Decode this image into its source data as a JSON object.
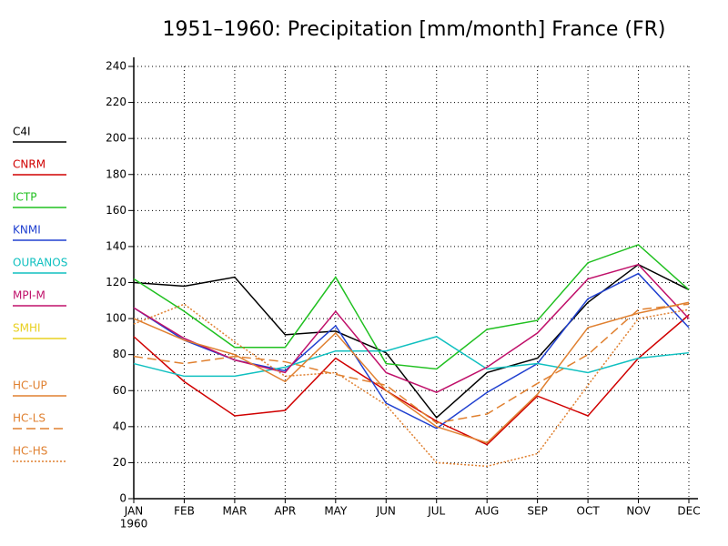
{
  "chart_data": {
    "type": "line",
    "title": "1951–1960: Precipitation [mm/month] France (FR)",
    "categories": [
      "JAN",
      "FEB",
      "MAR",
      "APR",
      "MAY",
      "JUN",
      "JUL",
      "AUG",
      "SEP",
      "OCT",
      "NOV",
      "DEC"
    ],
    "x_sublabel": "1960",
    "ylim": [
      0,
      240
    ],
    "yticks": [
      0,
      20,
      40,
      60,
      80,
      100,
      120,
      140,
      160,
      180,
      200,
      220,
      240
    ],
    "grid": true,
    "series": [
      {
        "name": "C4I",
        "color": "#000000",
        "dash": "none",
        "values": [
          120,
          118,
          123,
          91,
          93,
          81,
          45,
          70,
          78,
          109,
          130,
          116
        ]
      },
      {
        "name": "CNRM",
        "color": "#d00000",
        "dash": "none",
        "values": [
          90,
          65,
          46,
          49,
          78,
          60,
          43,
          30,
          57,
          46,
          78,
          102
        ]
      },
      {
        "name": "ICTP",
        "color": "#20c020",
        "dash": "none",
        "values": [
          122,
          104,
          84,
          84,
          123,
          75,
          72,
          94,
          99,
          131,
          141,
          116
        ]
      },
      {
        "name": "KNMI",
        "color": "#2040d0",
        "dash": "none",
        "values": [
          106,
          88,
          77,
          71,
          96,
          53,
          39,
          59,
          75,
          111,
          125,
          95
        ]
      },
      {
        "name": "OURANOS",
        "color": "#10c0c0",
        "dash": "none",
        "values": [
          75,
          68,
          68,
          73,
          82,
          82,
          90,
          72,
          75,
          70,
          78,
          81
        ]
      },
      {
        "name": "MPI-M",
        "color": "#c0106a",
        "dash": "none",
        "values": [
          106,
          89,
          77,
          70,
          104,
          70,
          59,
          73,
          92,
          122,
          130,
          100
        ]
      },
      {
        "name": "SMHI",
        "color": "#e8d020",
        "dash": "none",
        "values": [
          null,
          null,
          null,
          null,
          null,
          null,
          null,
          null,
          null,
          null,
          null,
          null
        ]
      },
      {
        "name": "HC-UP",
        "color": "#e08030",
        "dash": "none",
        "values": [
          100,
          88,
          80,
          65,
          92,
          60,
          40,
          31,
          58,
          95,
          103,
          109
        ]
      },
      {
        "name": "HC-LS",
        "color": "#e08030",
        "dash": "10,5",
        "values": [
          79,
          75,
          79,
          76,
          69,
          63,
          42,
          47,
          64,
          80,
          105,
          108
        ]
      },
      {
        "name": "HC-HS",
        "color": "#e08030",
        "dash": "2,2",
        "values": [
          97,
          108,
          87,
          68,
          70,
          52,
          20,
          18,
          25,
          63,
          100,
          105
        ]
      }
    ]
  }
}
